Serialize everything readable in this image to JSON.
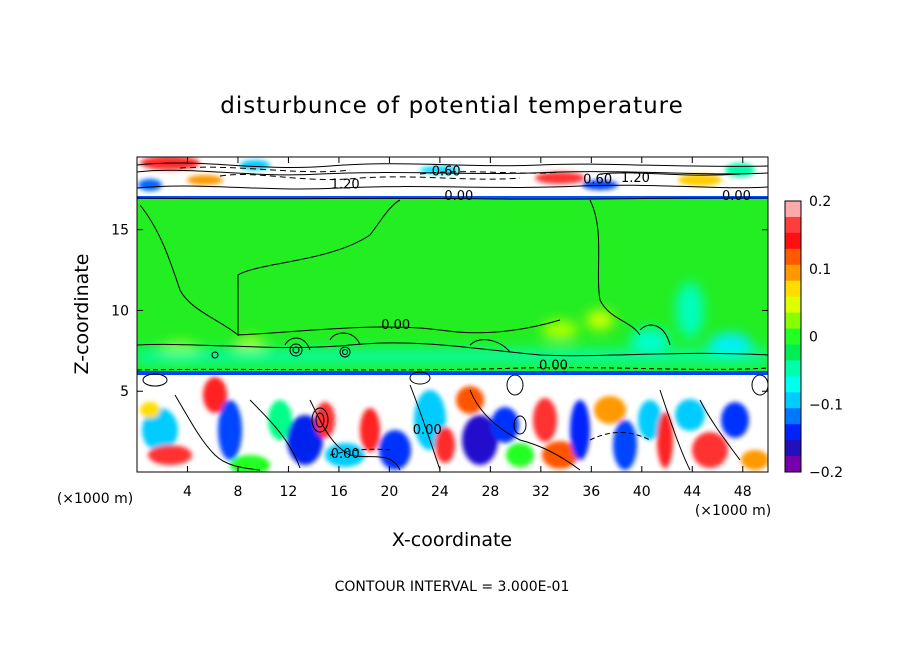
{
  "chart_data": {
    "type": "heatmap",
    "title": "disturbunce of potential temperature",
    "xlabel": "X-coordinate",
    "ylabel": "Z-coordinate",
    "x_unit": "(×1000 m)",
    "z_unit": "(×1000 m)",
    "xlim": [
      0,
      50
    ],
    "ylim": [
      0,
      19.5
    ],
    "x_ticks": [
      4,
      8,
      12,
      16,
      20,
      24,
      28,
      32,
      36,
      40,
      44,
      48
    ],
    "y_ticks": [
      5,
      10,
      15
    ],
    "colorbar": {
      "range": [
        -0.2,
        0.2
      ],
      "ticks": [
        "0.2",
        "0.1",
        "0",
        "−0.1",
        "−0.2"
      ],
      "colors": [
        "#ffaaaa",
        "#ff3d3d",
        "#ff1010",
        "#ff5a00",
        "#ff9900",
        "#ffdd00",
        "#ddff00",
        "#88ff00",
        "#22ff22",
        "#00ee55",
        "#00ffaa",
        "#00ffee",
        "#00ccff",
        "#0077ff",
        "#0022ff",
        "#2211bb",
        "#7700aa"
      ]
    },
    "contour_labels": [
      {
        "text": "0.60",
        "x": 24.5,
        "z": 18.6
      },
      {
        "text": "1.20",
        "x": 16.5,
        "z": 17.8
      },
      {
        "text": "0.00",
        "x": 25.5,
        "z": 17.1
      },
      {
        "text": "0.60",
        "x": 36.5,
        "z": 18.1
      },
      {
        "text": "1.20",
        "x": 39.5,
        "z": 18.2
      },
      {
        "text": "0.00",
        "x": 47.5,
        "z": 17.1
      },
      {
        "text": "0.00",
        "x": 20.5,
        "z": 9.1
      },
      {
        "text": "0.00",
        "x": 33.0,
        "z": 6.6
      },
      {
        "text": "0.00",
        "x": 16.5,
        "z": 1.1
      },
      {
        "text": "0.00",
        "x": 23.0,
        "z": 2.6
      }
    ],
    "footer": "CONTOUR INTERVAL = 3.000E-01"
  }
}
